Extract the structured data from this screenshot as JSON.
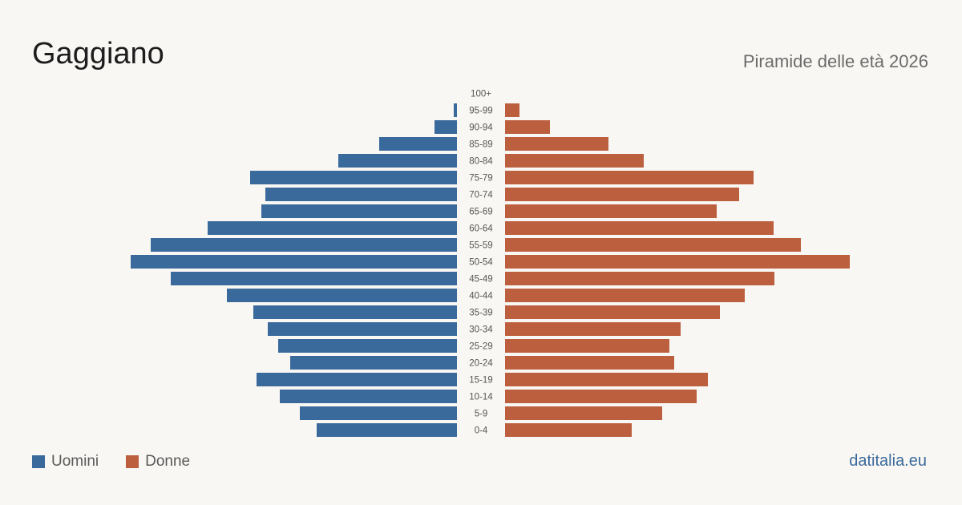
{
  "header": {
    "title": "Gaggiano",
    "subtitle": "Piramide delle età 2026"
  },
  "footer": {
    "source": "datitalia.eu"
  },
  "colors": {
    "men": "#3a6a9c",
    "women": "#bc5f3e",
    "label": "#555555"
  },
  "chart_data": {
    "type": "bar",
    "orientation": "horizontal-pyramid",
    "categories": [
      "100+",
      "95-99",
      "90-94",
      "85-89",
      "80-84",
      "75-79",
      "70-74",
      "65-69",
      "60-64",
      "55-59",
      "50-54",
      "45-49",
      "40-44",
      "35-39",
      "30-34",
      "25-29",
      "20-24",
      "15-19",
      "10-14",
      "5-9",
      "0-4"
    ],
    "series": [
      {
        "name": "Uomini",
        "values": [
          0,
          4,
          28,
          97,
          148,
          258,
          239,
          244,
          311,
          382,
          407,
          357,
          287,
          254,
          236,
          223,
          208,
          250,
          221,
          196,
          175
        ]
      },
      {
        "name": "Donne",
        "values": [
          0,
          18,
          56,
          129,
          173,
          310,
          292,
          264,
          335,
          369,
          430,
          336,
          299,
          268,
          219,
          205,
          211,
          253,
          239,
          196,
          158
        ]
      }
    ],
    "legend_position": "bottom-left",
    "grid": false
  }
}
